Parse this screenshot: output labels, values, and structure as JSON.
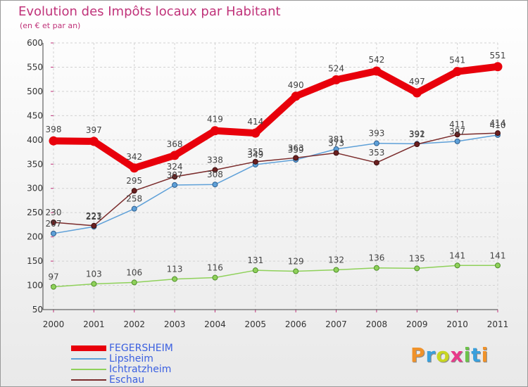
{
  "title": "Evolution des Impôts locaux par Habitant",
  "subtitle": "(en € et par an)",
  "logo_text": "Proxiti",
  "colors": {
    "title": "#c0337a",
    "fegersheim": "#e8000b",
    "lipsheim": "#5ea0d8",
    "ichtratzheim": "#8fd15a",
    "eschau": "#7a2b2b"
  },
  "chart_data": {
    "type": "line",
    "title": "Evolution des Impôts locaux par Habitant",
    "subtitle": "(en € et par an)",
    "xlabel": "",
    "ylabel": "",
    "x": [
      "2000",
      "2001",
      "2002",
      "2003",
      "2004",
      "2005",
      "2006",
      "2007",
      "2008",
      "2009",
      "2010",
      "2011"
    ],
    "ylim": [
      50,
      600
    ],
    "yticks": [
      50,
      100,
      150,
      200,
      250,
      300,
      350,
      400,
      450,
      500,
      550,
      600
    ],
    "grid": true,
    "legend_position": "bottom-left",
    "series": [
      {
        "name": "FEGERSHEIM",
        "color": "#e8000b",
        "values": [
          398,
          397,
          342,
          368,
          419,
          414,
          490,
          524,
          542,
          497,
          541,
          551
        ]
      },
      {
        "name": "Lipsheim",
        "color": "#5ea0d8",
        "values": [
          207,
          221,
          258,
          307,
          308,
          349,
          359,
          381,
          393,
          392,
          397,
          410
        ]
      },
      {
        "name": "Ichtratzheim",
        "color": "#8fd15a",
        "values": [
          97,
          103,
          106,
          113,
          116,
          131,
          129,
          132,
          136,
          135,
          141,
          141
        ]
      },
      {
        "name": "Eschau",
        "color": "#7a2b2b",
        "values": [
          230,
          223,
          295,
          324,
          338,
          355,
          363,
          373,
          353,
          391,
          411,
          414
        ]
      }
    ]
  }
}
